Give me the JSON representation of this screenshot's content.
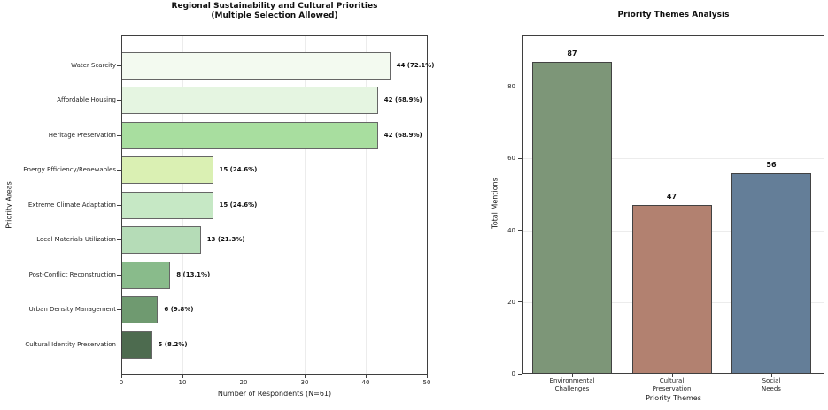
{
  "figure": {
    "background": "#ffffff",
    "frame_color": "#3f3f3f",
    "grid_color": "#ececec"
  },
  "chart_data": [
    {
      "type": "bar",
      "orientation": "horizontal",
      "title": "Regional Sustainability and Cultural Priorities",
      "subtitle": "(Multiple Selection Allowed)",
      "xlabel": "Number of Respondents (N=61)",
      "ylabel": "Priority Areas",
      "xlim": [
        0,
        50
      ],
      "xticks": [
        "0",
        "10",
        "20",
        "30",
        "40",
        "50"
      ],
      "xtick_values": [
        0,
        10,
        20,
        30,
        40,
        50
      ],
      "grid": "vertical",
      "legend": "none",
      "categories": [
        "Water Scarcity",
        "Affordable Housing",
        "Heritage Preservation",
        "Energy Efficiency/Renewables",
        "Extreme Climate Adaptation",
        "Local Materials Utilization",
        "Post-Conflict Reconstruction",
        "Urban Density Management",
        "Cultural Identity Preservation"
      ],
      "values": [
        44,
        42,
        42,
        15,
        15,
        13,
        8,
        6,
        5
      ],
      "value_labels": [
        "44 (72.1%)",
        "42 (68.9%)",
        "42 (68.9%)",
        "15 (24.6%)",
        "15 (24.6%)",
        "13 (21.3%)",
        "8 (13.1%)",
        "6 (9.8%)",
        "5 (8.2%)"
      ],
      "bar_colors": [
        "#f3faf0",
        "#e5f5e1",
        "#a8de9f",
        "#daf0b3",
        "#c6e8c5",
        "#b5dcb7",
        "#89bb8b",
        "#6f9a70",
        "#4d6b4f"
      ],
      "bar_edge_color": "#666666"
    },
    {
      "type": "bar",
      "orientation": "vertical",
      "title": "Priority Themes Analysis",
      "xlabel": "Priority Themes",
      "ylabel": "Total Mentions",
      "ylim": [
        0,
        94
      ],
      "yticks": [
        "0",
        "20",
        "40",
        "60",
        "80"
      ],
      "ytick_values": [
        0,
        20,
        40,
        60,
        80
      ],
      "grid": "horizontal",
      "legend": "none",
      "categories": [
        [
          "Environmental",
          "Challenges"
        ],
        [
          "Cultural",
          "Preservation"
        ],
        [
          "Social",
          "Needs"
        ]
      ],
      "values": [
        87,
        47,
        56
      ],
      "value_labels": [
        "87",
        "47",
        "56"
      ],
      "bar_colors": [
        "#7d9678",
        "#b28170",
        "#647e98"
      ],
      "bar_edge_color": "#424242"
    }
  ]
}
